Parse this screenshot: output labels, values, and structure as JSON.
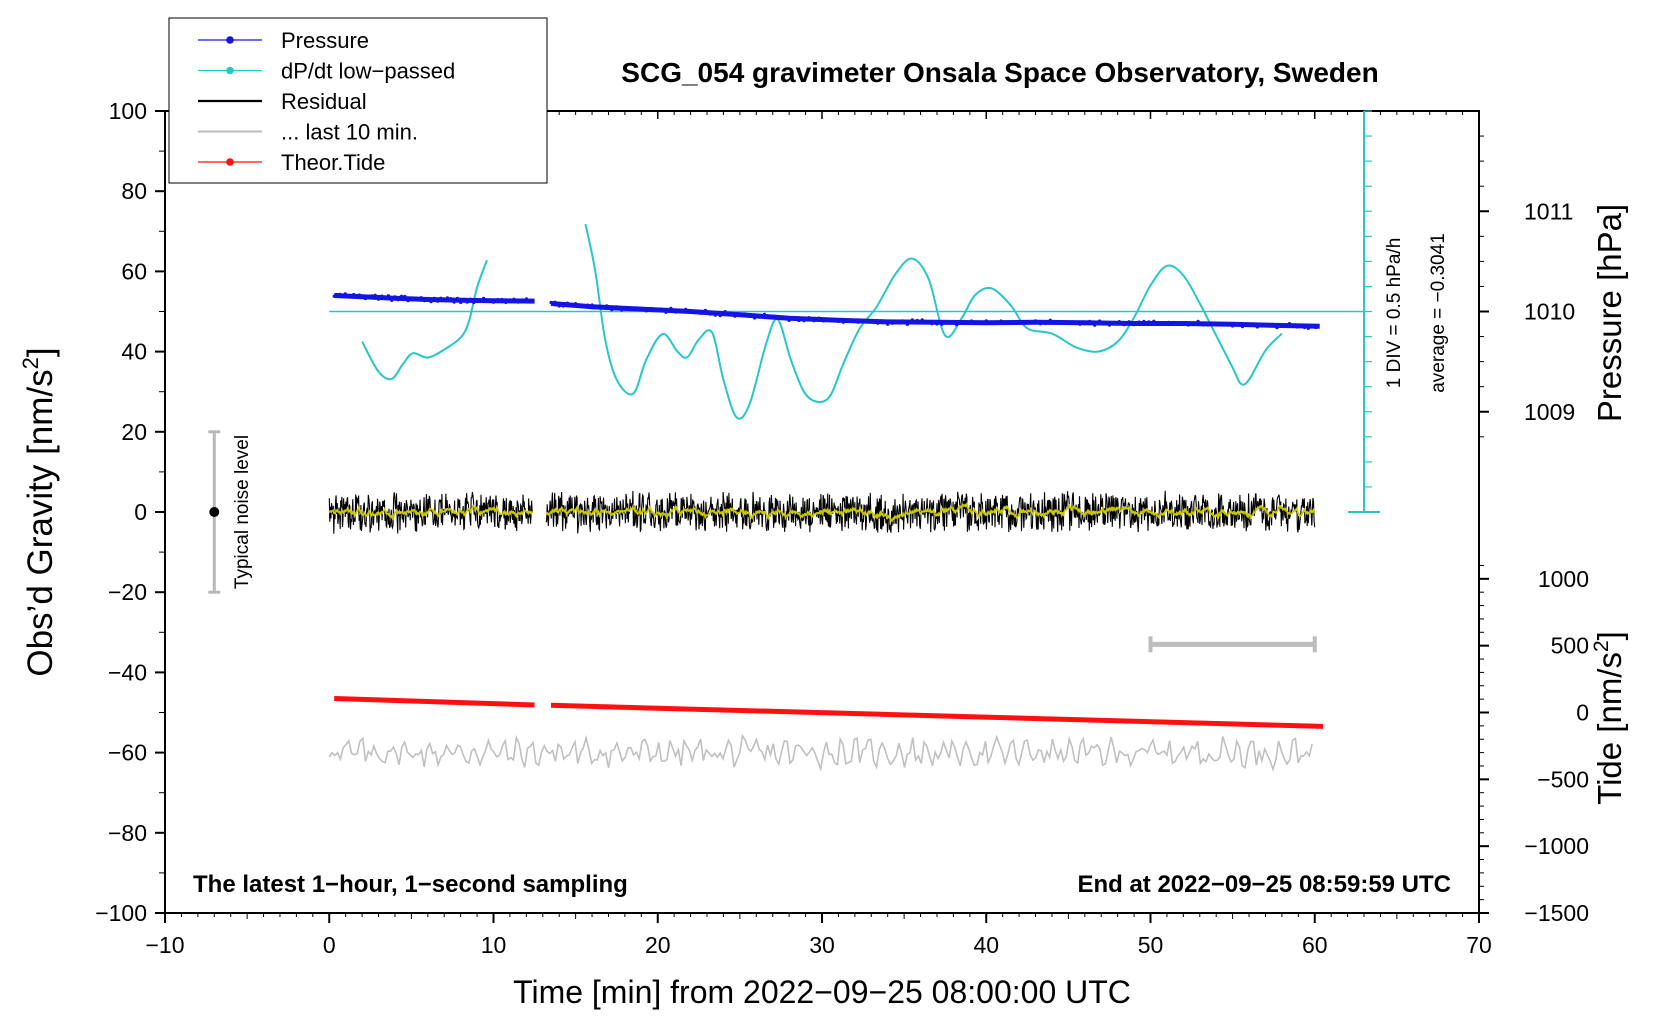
{
  "chart_data": {
    "type": "line",
    "title": "SCG_054 gravimeter Onsala Space Observatory, Sweden",
    "xlabel": "Time [min] from 2022−09−25 08:00:00 UTC",
    "ylabel_left_prefix": "Obs’d Gravity [nm/s",
    "ylabel_left_sup": "2",
    "ylabel_left_suffix": "]",
    "ylabel_right_pressure": "Pressure [hPa]",
    "ylabel_right_tide_prefix": "Tide [nm/s",
    "ylabel_right_tide_sup": "2",
    "ylabel_right_tide_suffix": "]",
    "xlim": [
      -10,
      70
    ],
    "ylim": [
      -100,
      100
    ],
    "x_ticks": [
      -10,
      0,
      10,
      20,
      30,
      40,
      50,
      60,
      70
    ],
    "x_tick_labels": [
      "−10",
      "0",
      "10",
      "20",
      "30",
      "40",
      "50",
      "60",
      "70"
    ],
    "y_ticks": [
      -100,
      -80,
      -60,
      -40,
      -20,
      0,
      20,
      40,
      60,
      80,
      100
    ],
    "y_tick_labels": [
      "−100",
      "−80",
      "−60",
      "−40",
      "−20",
      "0",
      "20",
      "40",
      "60",
      "80",
      "100"
    ],
    "pressure_axis": {
      "ticks": [
        1009,
        1010,
        1011
      ],
      "tick_labels": [
        "1009",
        "1010",
        "1011"
      ],
      "gravity_at_1010": 50,
      "gravity_per_hpa": 25
    },
    "tide_axis": {
      "ticks": [
        -1500,
        -1000,
        -500,
        0,
        500,
        1000
      ],
      "tick_labels": [
        "−1500",
        "−1000",
        "−500",
        "0",
        "500",
        "1000"
      ],
      "gravity_at_0": -50,
      "gravity_per_unit": 0.0333333
    },
    "legend": {
      "position": "top-left",
      "entries": [
        {
          "label": "Pressure",
          "color": "#1414e6",
          "marker": true
        },
        {
          "label": "dP/dt low−passed",
          "color": "#27c7c7",
          "marker": true
        },
        {
          "label": "Residual",
          "color": "#000000",
          "marker": false
        },
        {
          "label": "... last 10 min.",
          "color": "#c0c0c0",
          "marker": false
        },
        {
          "label": "Theor.Tide",
          "color": "#ff1010",
          "marker": true
        }
      ]
    },
    "annotations": {
      "bottom_left": "The latest 1−hour, 1−second sampling",
      "bottom_right": "End at 2022−09−25 08:59:59 UTC",
      "noise_label": "Typical noise level",
      "div_label": "1 DIV = 0.5 hPa/h",
      "average_label": "average = −0.3041"
    },
    "noise_bar": {
      "x": -7,
      "y_low": -20,
      "y_high": 20,
      "y_mid": 0
    },
    "ten_min_bar": {
      "x_start": 50,
      "x_end": 60,
      "y": -33
    },
    "dpdt_scale": {
      "x": 63,
      "y_low": 0,
      "y_high": 100,
      "y_ref": 50,
      "x_ref_start": 0,
      "x_ref_end": 63
    },
    "pressure_series": {
      "color": "#1414e6",
      "segments": [
        {
          "x": [
            0.3,
            2,
            4,
            6,
            8,
            10,
            12.5
          ],
          "y": [
            54,
            53.7,
            53.3,
            53,
            52.8,
            52.7,
            52.6
          ]
        },
        {
          "x": [
            13.5,
            16,
            19,
            22,
            25,
            28,
            31,
            34,
            37,
            40,
            43,
            46,
            49,
            52,
            55,
            58,
            60.3
          ],
          "y": [
            52,
            51.2,
            50.6,
            50,
            49.2,
            48.3,
            47.8,
            47.4,
            47.3,
            47.2,
            47.3,
            47.2,
            47,
            47,
            46.8,
            46.5,
            46.3
          ]
        }
      ]
    },
    "dpdt_series": {
      "color": "#27c7c7",
      "segments": [
        {
          "x": [
            2,
            3,
            3.8,
            4.5,
            5.1,
            6,
            7,
            8,
            8.5,
            9,
            9.6
          ],
          "y": [
            42.5,
            35,
            33.2,
            37,
            39.6,
            38.5,
            40.5,
            43.5,
            47.5,
            56,
            62.8
          ]
        },
        {
          "x": [
            15.6,
            16.2,
            16.8,
            17.5,
            18.5,
            19.3,
            20.3,
            21.2,
            21.8,
            22.5,
            23.3,
            24,
            24.8,
            25.6,
            26.6,
            27.3,
            28.1,
            28.9,
            29.7,
            30.5,
            31.3,
            32.3,
            33.3,
            34.5,
            35.5,
            36.5,
            37.5,
            38.5,
            39.3,
            40.3,
            41.5,
            42.5,
            44,
            45.5,
            46.8,
            48,
            49,
            50,
            51,
            52,
            53,
            54,
            55,
            55.5,
            56,
            57,
            58
          ],
          "y": [
            71.8,
            60,
            43,
            33,
            29.5,
            38,
            44.4,
            40,
            38.6,
            43,
            44.8,
            33,
            23.6,
            27,
            42,
            48,
            38,
            30,
            27.5,
            29,
            37,
            45.8,
            51,
            59.5,
            63.2,
            58,
            44,
            48.3,
            54,
            55.8,
            51.5,
            45.8,
            44.5,
            41,
            40,
            42.5,
            48.5,
            56.5,
            61.4,
            59,
            52,
            44,
            36,
            32,
            33,
            40.3,
            44.5
          ]
        }
      ]
    },
    "residual_series": {
      "color": "#000000",
      "smooth_color": "#c8c800",
      "segments": [
        {
          "x_start": 0,
          "x_end": 12.4
        },
        {
          "x_start": 13.2,
          "x_end": 60
        }
      ],
      "amplitude": 5.5
    },
    "last10_series": {
      "color": "#c0c0c0",
      "offset": -60,
      "amplitude": 3.5,
      "x_start": 0,
      "x_end": 60
    },
    "tide_series": {
      "color": "#ff1010",
      "segments": [
        {
          "x": [
            0.3,
            12.5
          ],
          "y_tide": [
            105,
            56
          ]
        },
        {
          "x": [
            13.5,
            60.5
          ],
          "y_tide": [
            54,
            -104
          ]
        }
      ]
    }
  }
}
